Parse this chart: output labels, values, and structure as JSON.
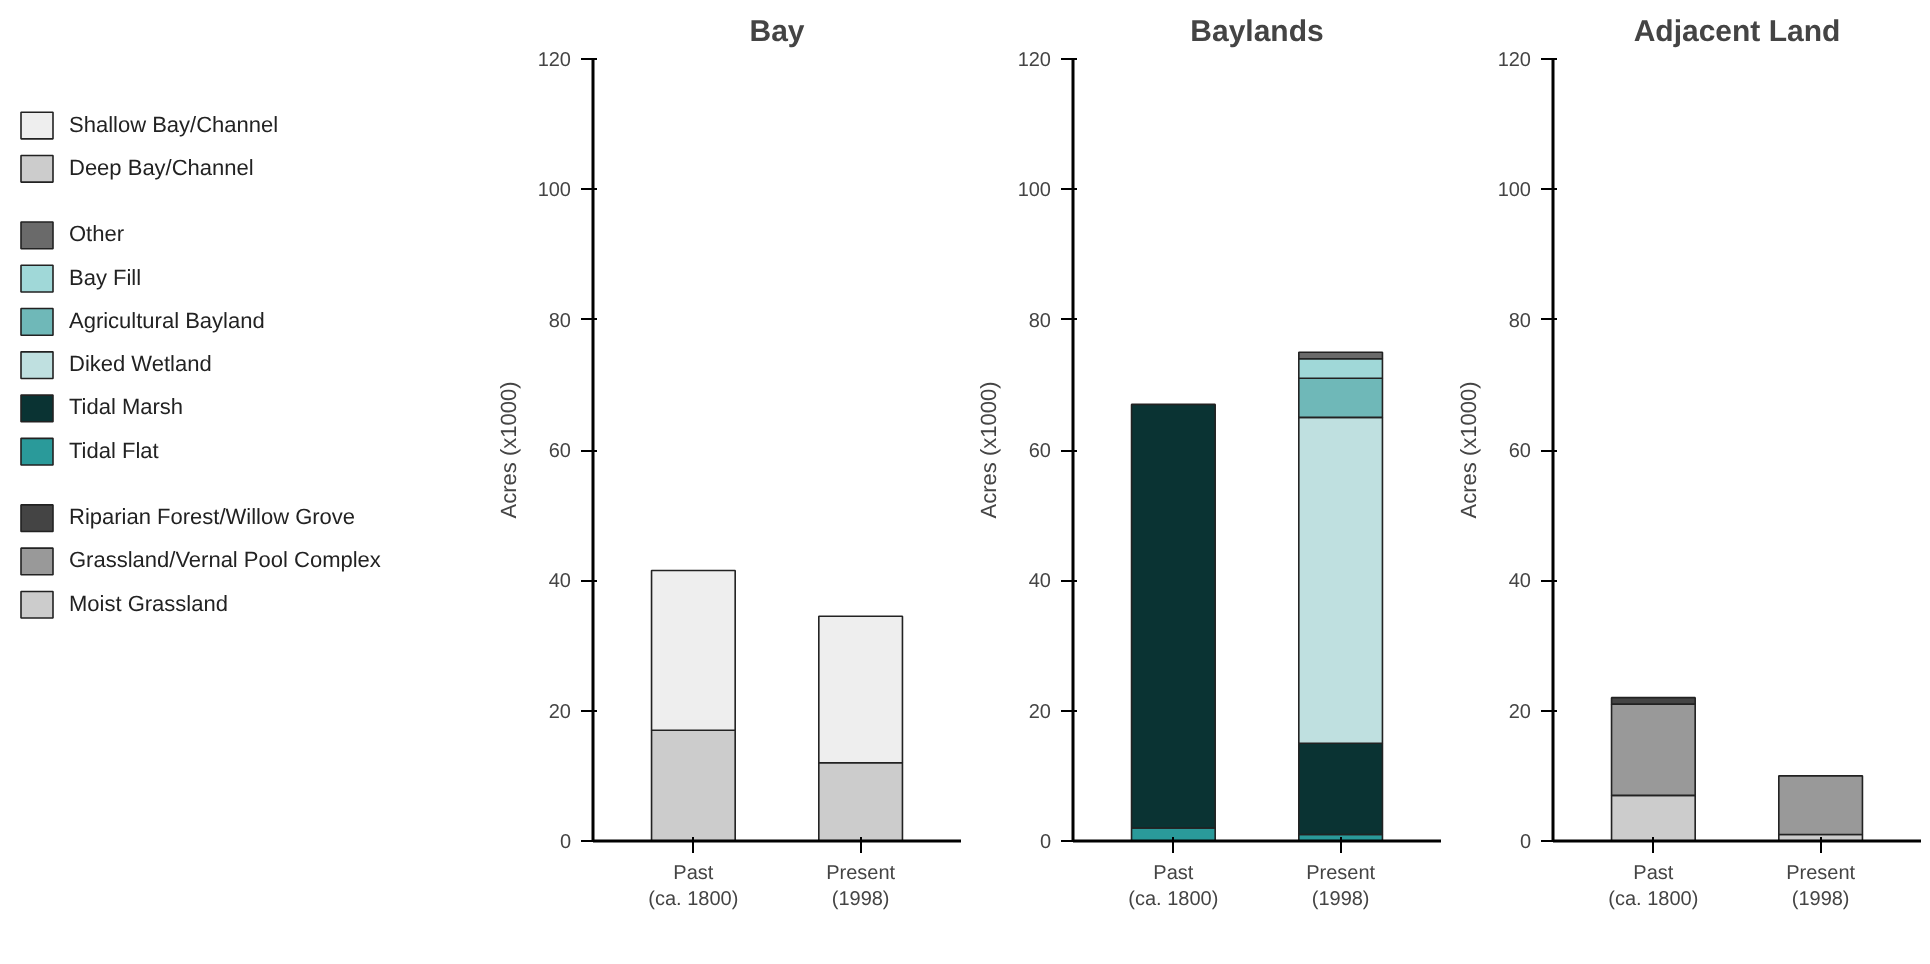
{
  "chart_data": [
    {
      "type": "bar",
      "title": "Bay",
      "ylabel": "Acres (x1000)",
      "categories": [
        "Past\n(ca. 1800)",
        "Present\n(1998)"
      ],
      "stacked": true,
      "ylim": [
        0,
        120
      ],
      "yticks": [
        0,
        20,
        40,
        60,
        80,
        100,
        120
      ],
      "grid": false,
      "legend": "left",
      "series": [
        {
          "name": "Deep Bay/Channel",
          "color": "#cccccc",
          "values": [
            17,
            12
          ]
        },
        {
          "name": "Shallow Bay/Channel",
          "color": "#eeeeee",
          "values": [
            24.5,
            22.5
          ]
        }
      ]
    },
    {
      "type": "bar",
      "title": "Baylands",
      "ylabel": "Acres (x1000)",
      "categories": [
        "Past\n(ca. 1800)",
        "Present\n(1998)"
      ],
      "stacked": true,
      "ylim": [
        0,
        120
      ],
      "yticks": [
        0,
        20,
        40,
        60,
        80,
        100,
        120
      ],
      "grid": false,
      "legend": "left",
      "series": [
        {
          "name": "Tidal Flat",
          "color": "#2a9a9a",
          "values": [
            2,
            1
          ]
        },
        {
          "name": "Tidal Marsh",
          "color": "#0a3333",
          "values": [
            65,
            14
          ]
        },
        {
          "name": "Diked Wetland",
          "color": "#bfe0e0",
          "values": [
            null,
            50
          ]
        },
        {
          "name": "Agricultural Bayland",
          "color": "#6fb8b8",
          "values": [
            null,
            6
          ]
        },
        {
          "name": "Bay Fill",
          "color": "#a0d8d8",
          "values": [
            null,
            3
          ]
        },
        {
          "name": "Other",
          "color": "#6a6a6a",
          "values": [
            null,
            1
          ]
        }
      ]
    },
    {
      "type": "bar",
      "title": "Adjacent Land",
      "ylabel": "Acres (x1000)",
      "categories": [
        "Past\n(ca. 1800)",
        "Present\n(1998)"
      ],
      "stacked": true,
      "ylim": [
        0,
        120
      ],
      "yticks": [
        0,
        20,
        40,
        60,
        80,
        100,
        120
      ],
      "grid": false,
      "legend": "left",
      "series": [
        {
          "name": "Moist Grassland",
          "color": "#cccccc",
          "values": [
            7,
            1
          ]
        },
        {
          "name": "Grassland/Vernal Pool Complex",
          "color": "#999999",
          "values": [
            14,
            9
          ]
        },
        {
          "name": "Riparian Forest/Willow Grove",
          "color": "#444444",
          "values": [
            1,
            null
          ]
        }
      ]
    }
  ]
}
